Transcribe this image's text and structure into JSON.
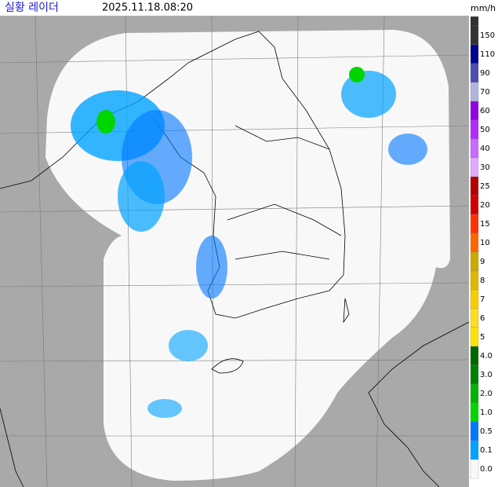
{
  "header": {
    "title": "실황 레이더",
    "time": "2025.11.18.08:20"
  },
  "legend": {
    "unit": "mm/h",
    "items": [
      {
        "label": "150",
        "color": "#333333"
      },
      {
        "label": "110",
        "color": "#000390"
      },
      {
        "label": "90",
        "color": "#4c4eb1"
      },
      {
        "label": "70",
        "color": "#b3b4de"
      },
      {
        "label": "60",
        "color": "#9300e4"
      },
      {
        "label": "50",
        "color": "#b329ff"
      },
      {
        "label": "40",
        "color": "#c969ff"
      },
      {
        "label": "30",
        "color": "#e0a9ff"
      },
      {
        "label": "25",
        "color": "#b40000"
      },
      {
        "label": "20",
        "color": "#d20000"
      },
      {
        "label": "15",
        "color": "#ff3300"
      },
      {
        "label": "10",
        "color": "#ff6600"
      },
      {
        "label": "9",
        "color": "#ccaa00"
      },
      {
        "label": "8",
        "color": "#e0b900"
      },
      {
        "label": "7",
        "color": "#f9cd00"
      },
      {
        "label": "6",
        "color": "#ffdc1f"
      },
      {
        "label": "5",
        "color": "#ffe100"
      },
      {
        "label": "4.0",
        "color": "#006600"
      },
      {
        "label": "3.0",
        "color": "#008000"
      },
      {
        "label": "2.0",
        "color": "#00b300"
      },
      {
        "label": "1.0",
        "color": "#00d500"
      },
      {
        "label": "0.5",
        "color": "#0077ff"
      },
      {
        "label": "0.1",
        "color": "#00a3ff"
      },
      {
        "label": "0.0",
        "color": "#f8f8f8"
      }
    ]
  }
}
